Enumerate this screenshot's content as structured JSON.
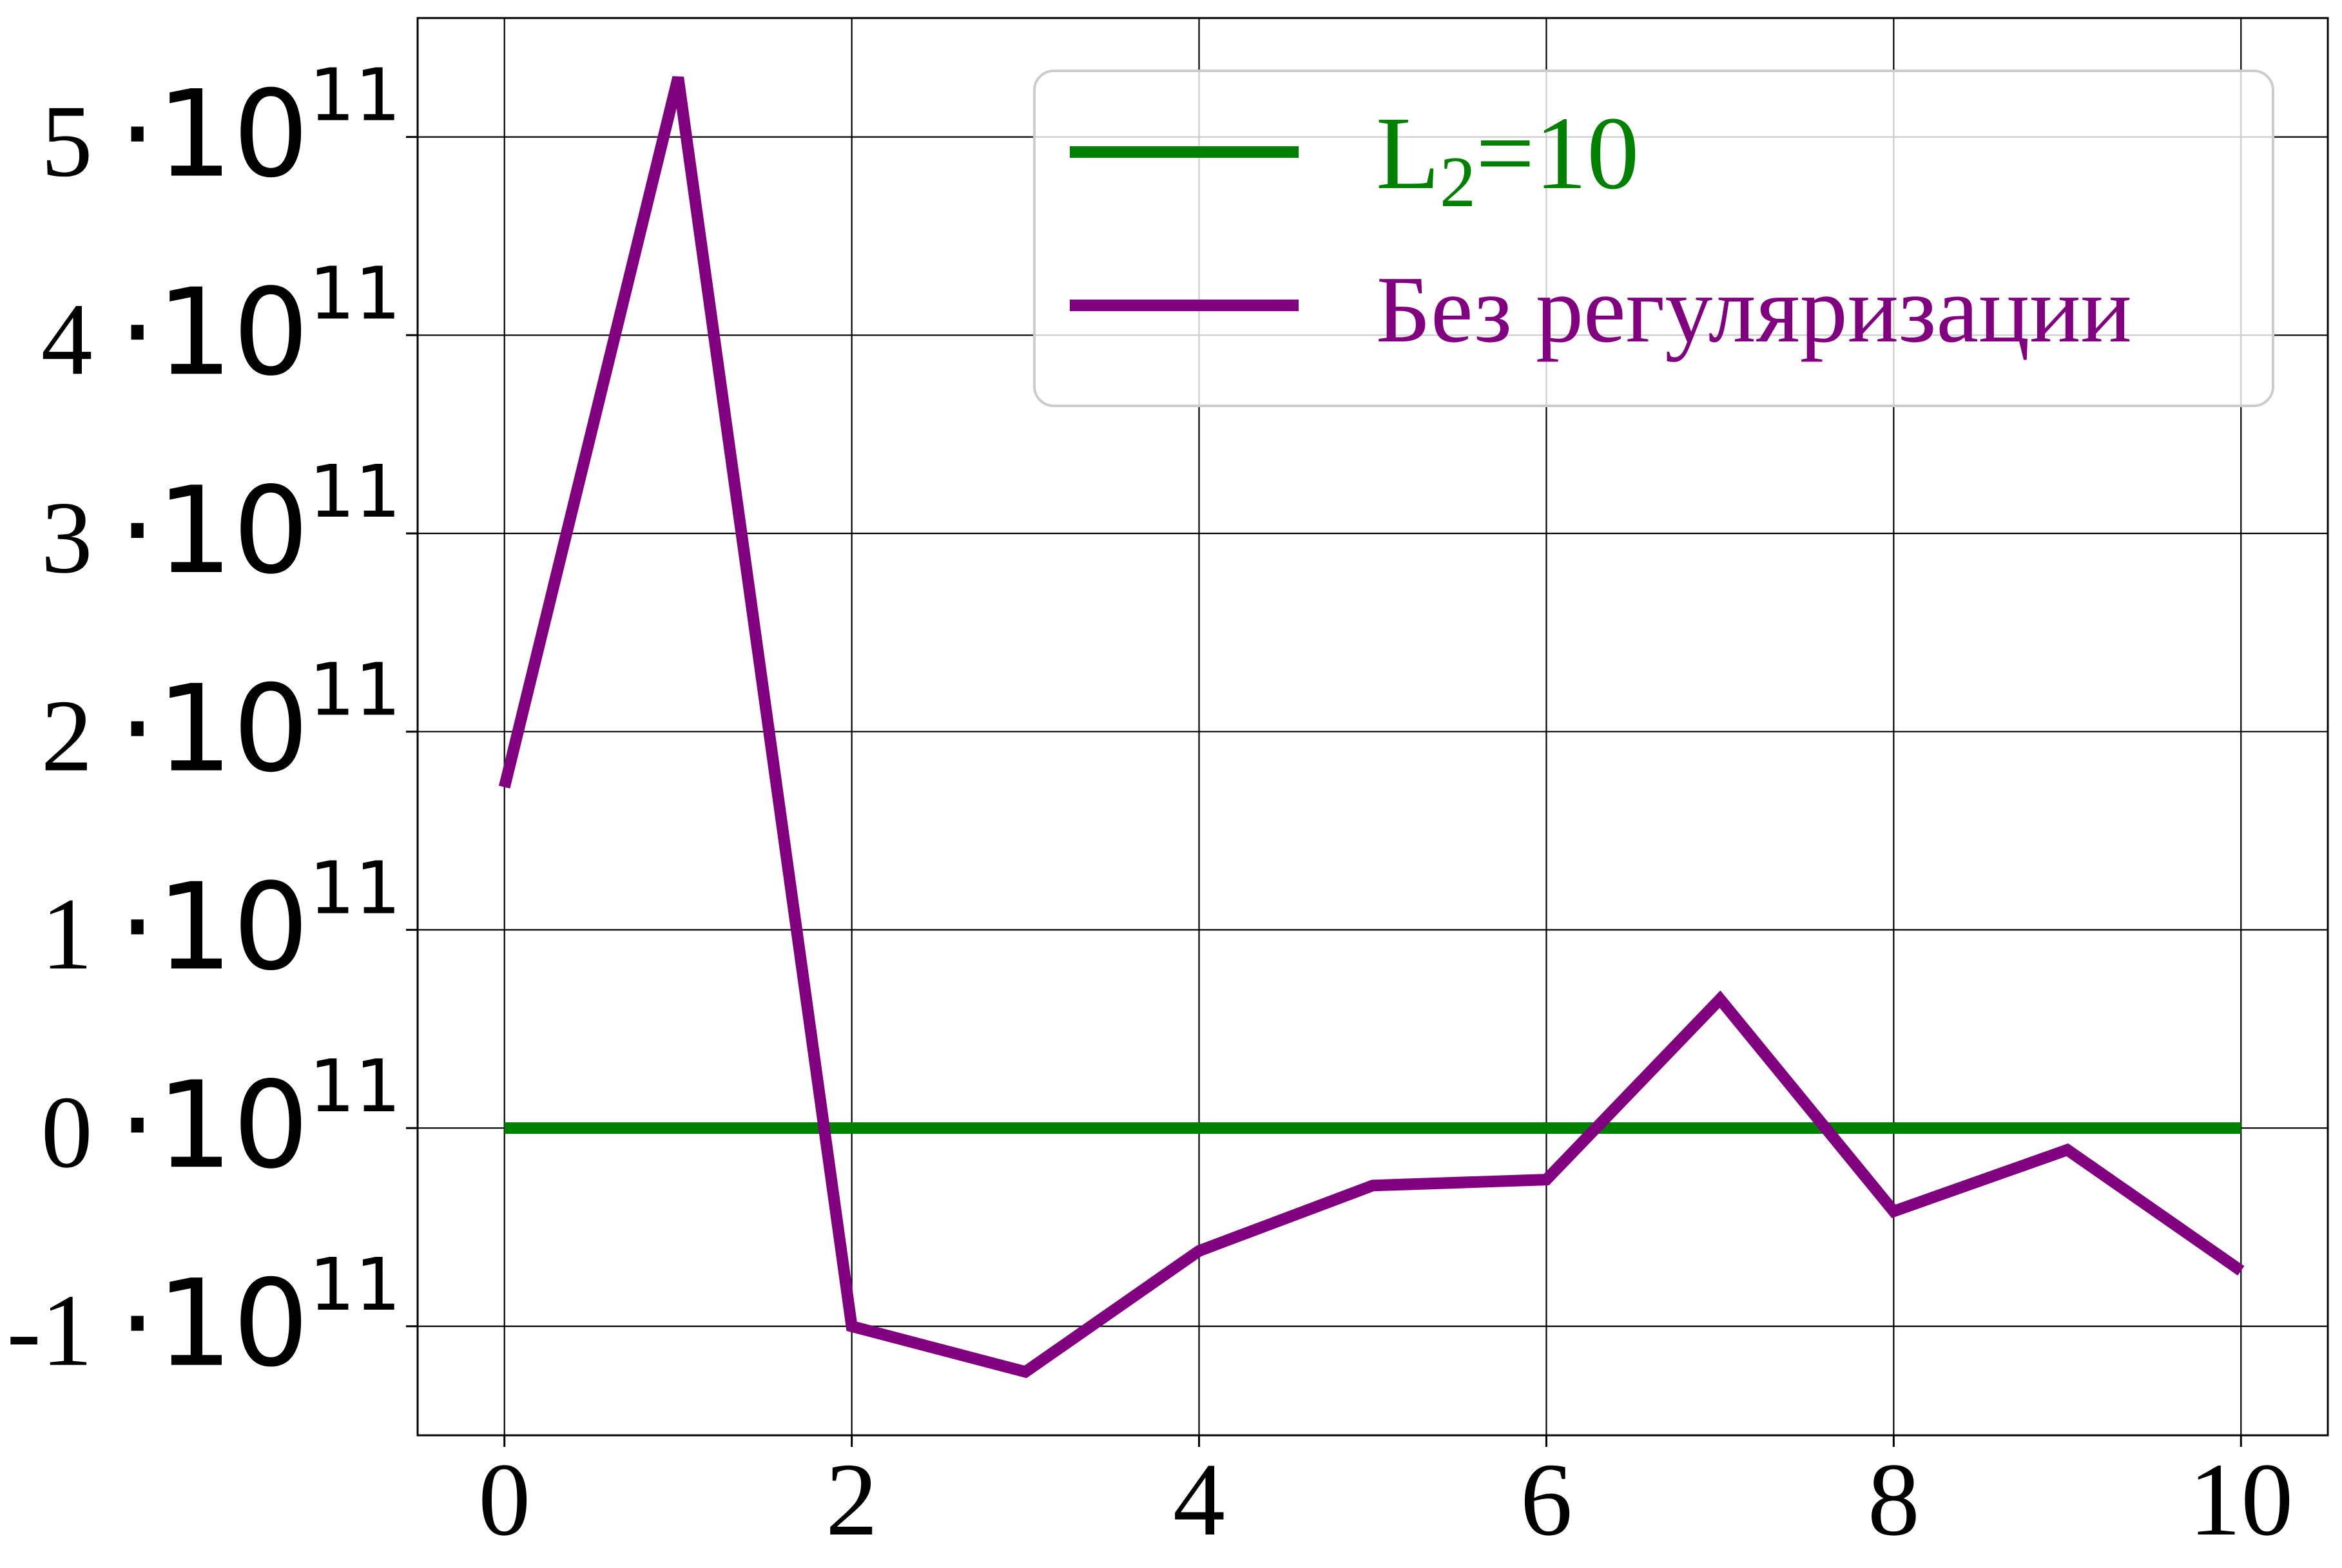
{
  "chart_data": {
    "type": "line",
    "title": "",
    "xlabel": "",
    "ylabel": "",
    "x": [
      0,
      1,
      2,
      3,
      4,
      5,
      6,
      7,
      8,
      9,
      10
    ],
    "xlim": [
      -0.5,
      10.5
    ],
    "ylim": [
      -155000000000,
      560000000000
    ],
    "xticks": [
      0,
      2,
      4,
      6,
      8,
      10
    ],
    "xtick_labels": [
      "0",
      "2",
      "4",
      "6",
      "8",
      "10"
    ],
    "yticks": [
      -100000000000,
      0,
      100000000000,
      200000000000,
      300000000000,
      400000000000,
      500000000000
    ],
    "ytick_mantissas": [
      "-1",
      "0",
      "1",
      "2",
      "3",
      "4",
      "5"
    ],
    "ytick_multiplier": "·10",
    "ytick_exponent": "11",
    "grid": true,
    "legend_position": "top-right",
    "series": [
      {
        "name_main": "L",
        "name_sub": "2",
        "name_rest": "=10",
        "color": "#008000",
        "values": [
          0,
          0,
          0,
          0,
          0,
          0,
          0,
          0,
          0,
          0,
          0
        ]
      },
      {
        "name": "Без регуляризации",
        "color": "#800080",
        "values": [
          172000000000,
          530000000000,
          -100000000000,
          -123000000000,
          -62000000000,
          -29000000000,
          -26000000000,
          65000000000,
          -42000000000,
          -11000000000,
          -72000000000
        ]
      }
    ]
  }
}
